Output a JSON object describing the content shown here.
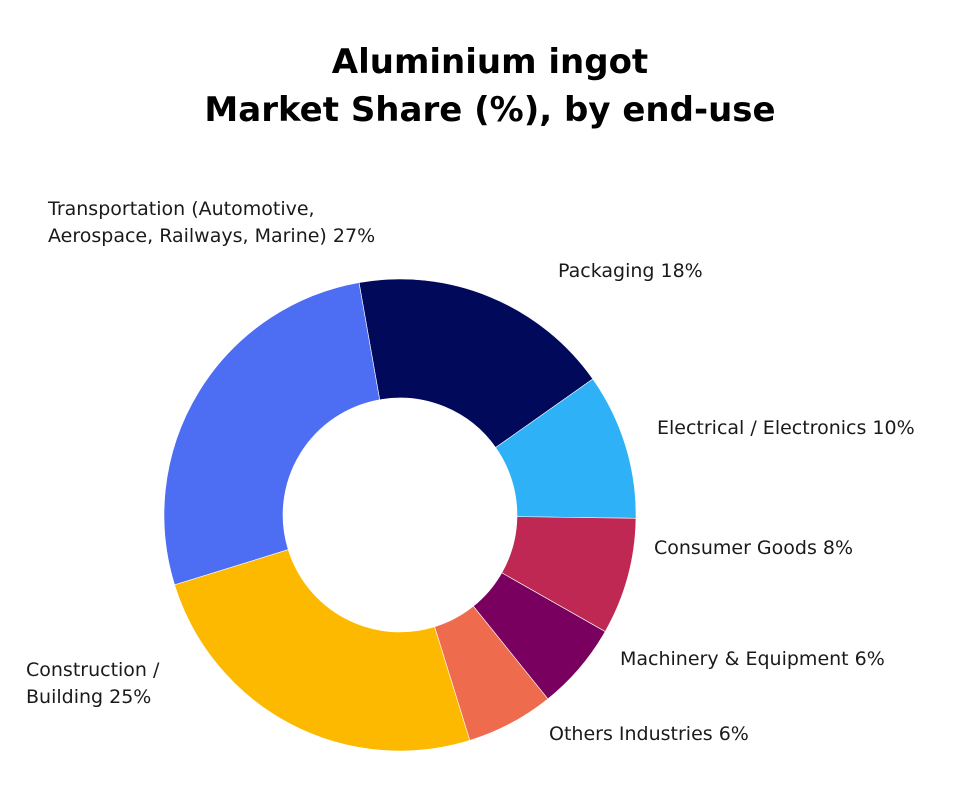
{
  "chart_data": {
    "type": "pie",
    "donut": true,
    "title": [
      "Aluminium ingot",
      "Market Share (%), by end-use"
    ],
    "slices": [
      {
        "name": "Packaging",
        "value": 18,
        "label": "Packaging 18%",
        "color": "#01095a"
      },
      {
        "name": "Electrical / Electronics",
        "value": 10,
        "label": "Electrical / Electronics 10%",
        "color": "#2eb1f7"
      },
      {
        "name": "Consumer Goods",
        "value": 8,
        "label": "Consumer Goods 8%",
        "color": "#bf2853"
      },
      {
        "name": "Machinery & Equipment",
        "value": 6,
        "label": "Machinery & Equipment 6%",
        "color": "#7a0060"
      },
      {
        "name": "Others Industries",
        "value": 6,
        "label": "Others Industries 6%",
        "color": "#ef6b4e"
      },
      {
        "name": "Construction / Building",
        "value": 25,
        "label_lines": [
          "Construction /",
          "Building 25%"
        ],
        "color": "#fdb800"
      },
      {
        "name": "Transportation (Automotive, Aerospace, Railways, Marine)",
        "value": 27,
        "label_lines": [
          "Transportation (Automotive,",
          "Aerospace, Railways, Marine) 27%"
        ],
        "color": "#4d6df3"
      }
    ]
  }
}
